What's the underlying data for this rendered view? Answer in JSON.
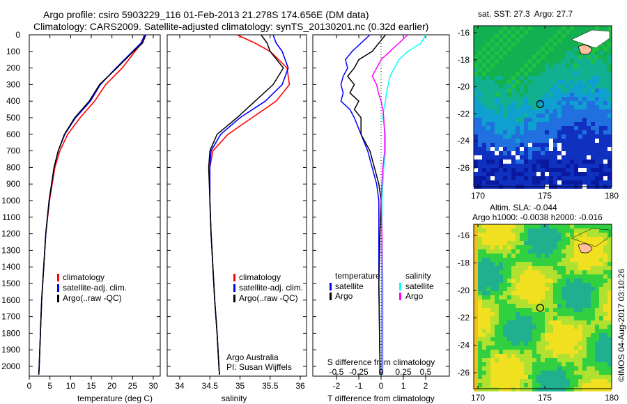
{
  "title_line1": "Argo profile: csiro 5903229_116 01-Feb-2013 21.278S 174.656E (DM data)",
  "title_line2": "Climatology: CARS2009. Satellite-adjusted climatology: synTS_20130201.nc (0.32d earlier)",
  "colors": {
    "climatology": "#ff0000",
    "satellite": "#0000ff",
    "argo": "#000000",
    "sal_satellite": "#00ffff",
    "sal_argo": "#ff00ff"
  },
  "chart_data": [
    {
      "type": "line",
      "xlabel": "temperature (deg C)",
      "xlim": [
        -1,
        31
      ],
      "xticks": [
        0,
        5,
        10,
        15,
        20,
        25,
        30
      ],
      "ylim": [
        2060,
        0
      ],
      "yticks": [
        0,
        100,
        200,
        300,
        400,
        500,
        600,
        700,
        800,
        900,
        1000,
        1100,
        1200,
        1300,
        1400,
        1500,
        1600,
        1700,
        1800,
        1900,
        2000
      ],
      "legend": [
        "climatology",
        "satellite-adj. clim.",
        "Argo(..raw -QC)"
      ],
      "depth": [
        0,
        50,
        100,
        200,
        300,
        400,
        500,
        600,
        700,
        800,
        1000,
        1200,
        1400,
        1600,
        1800,
        2000,
        2050
      ],
      "series": [
        {
          "name": "climatology",
          "values": [
            27.8,
            27.2,
            25.6,
            22.5,
            18.5,
            15.8,
            12.3,
            9.3,
            7.4,
            6.2,
            4.9,
            4.0,
            3.5,
            3.0,
            2.7,
            2.4,
            2.3
          ]
        },
        {
          "name": "satellite-adj. clim.",
          "values": [
            28.0,
            27.0,
            25.0,
            21.0,
            17.2,
            14.8,
            11.2,
            8.6,
            7.0,
            6.0,
            4.8,
            4.0,
            3.5,
            3.0,
            2.7,
            2.4,
            2.3
          ]
        },
        {
          "name": "Argo(..raw -QC)",
          "values": [
            28.2,
            27.4,
            25.2,
            21.2,
            17.0,
            14.5,
            11.0,
            8.5,
            7.0,
            6.0,
            4.8,
            4.0,
            3.5,
            3.0,
            2.7,
            2.4,
            2.3
          ]
        }
      ],
      "annotation": []
    },
    {
      "type": "line",
      "xlabel": "salinity",
      "xlim": [
        33.8,
        36.2
      ],
      "xticks": [
        34,
        34.5,
        35,
        35.5,
        36
      ],
      "ylim": [
        2060,
        0
      ],
      "legend": [
        "climatology",
        "satellite-adj. clim.",
        "Argo(..raw -QC)"
      ],
      "depth": [
        0,
        50,
        100,
        200,
        300,
        400,
        500,
        600,
        700,
        800,
        1000,
        1200,
        1400,
        1600,
        1800,
        2000,
        2050
      ],
      "series": [
        {
          "name": "climatology",
          "values": [
            34.95,
            35.25,
            35.5,
            35.78,
            35.82,
            35.6,
            35.2,
            34.8,
            34.55,
            34.5,
            34.5,
            34.52,
            34.55,
            34.58,
            34.62,
            34.65,
            34.66
          ]
        },
        {
          "name": "satellite-adj. clim.",
          "values": [
            35.55,
            35.6,
            35.7,
            35.8,
            35.7,
            35.42,
            35.0,
            34.68,
            34.52,
            34.5,
            34.5,
            34.52,
            34.55,
            34.58,
            34.62,
            34.65,
            34.66
          ]
        },
        {
          "name": "Argo(..raw -QC)",
          "values": [
            35.35,
            35.45,
            35.5,
            35.72,
            35.55,
            35.25,
            34.95,
            34.62,
            34.5,
            34.48,
            34.5,
            34.52,
            34.55,
            34.58,
            34.62,
            34.65,
            34.66
          ]
        }
      ],
      "annotation": [
        "Argo Australia",
        "PI: Susan Wijffels"
      ]
    },
    {
      "type": "line",
      "xlabel": "T difference from climatology",
      "xlabel2": "S difference from climatology",
      "xlim": [
        -3,
        3
      ],
      "xticks": [
        -2,
        -1,
        0,
        1,
        2
      ],
      "xticks2": [
        "-0.5",
        "-0.25",
        "0",
        "0.25",
        "0.5"
      ],
      "ylim": [
        2060,
        0
      ],
      "legend_temp_title": "temperature",
      "legend_sal_title": "salinity",
      "legend_temp": [
        "satellite",
        "Argo"
      ],
      "legend_sal": [
        "satellite",
        "Argo"
      ],
      "depth": [
        0,
        50,
        100,
        150,
        200,
        250,
        300,
        350,
        400,
        450,
        500,
        600,
        700,
        800,
        900,
        1000,
        1200,
        1500,
        2000,
        2050
      ],
      "series": [
        {
          "name": "temperature satellite",
          "values": [
            -0.5,
            -0.9,
            -1.3,
            -1.6,
            -1.5,
            -1.7,
            -1.8,
            -1.7,
            -1.8,
            -1.4,
            -1.2,
            -0.9,
            -0.6,
            -0.4,
            -0.2,
            -0.1,
            -0.1,
            -0.1,
            -0.05,
            -0.05
          ]
        },
        {
          "name": "temperature Argo",
          "values": [
            0.2,
            -0.1,
            -0.4,
            -1.0,
            -1.2,
            -1.5,
            -1.2,
            -1.4,
            -1.0,
            -1.2,
            -0.9,
            -0.9,
            -0.5,
            -0.3,
            -0.1,
            0.0,
            -0.05,
            -0.1,
            -0.05,
            -0.05
          ]
        },
        {
          "name": "salinity satellite",
          "values": [
            0.5,
            0.45,
            0.3,
            0.2,
            0.15,
            0.1,
            0.08,
            0.06,
            0.05,
            0.03,
            0.02,
            0.05,
            0.05,
            0.03,
            0.02,
            0.01,
            0.01,
            0.02,
            0.02,
            0.02
          ]
        },
        {
          "name": "salinity Argo",
          "values": [
            0.3,
            0.2,
            0.1,
            0.0,
            -0.05,
            -0.1,
            -0.05,
            -0.03,
            0.0,
            0.02,
            0.03,
            0.04,
            0.04,
            0.02,
            0.01,
            0.0,
            0.01,
            0.01,
            0.01,
            0.01
          ]
        }
      ]
    },
    {
      "type": "heatmap",
      "title": "sat. SST: 27.3  Argo: 27.7",
      "xticks": [
        170,
        175,
        180
      ],
      "yticks": [
        -16,
        -18,
        -20,
        -22,
        -24,
        -26
      ],
      "marker": {
        "lon": 174.656,
        "lat": -21.278
      }
    },
    {
      "type": "heatmap",
      "title": "Altim. SLA: -0.044",
      "subtitle": "Argo h1000: -0.0038 h2000: -0.016",
      "xticks": [
        170,
        175,
        180
      ],
      "yticks": [
        -16,
        -18,
        -20,
        -22,
        -24,
        -26
      ],
      "marker": {
        "lon": 174.656,
        "lat": -21.278
      }
    }
  ],
  "credit": "©IMOS 04-Aug-2017 03:10:26"
}
